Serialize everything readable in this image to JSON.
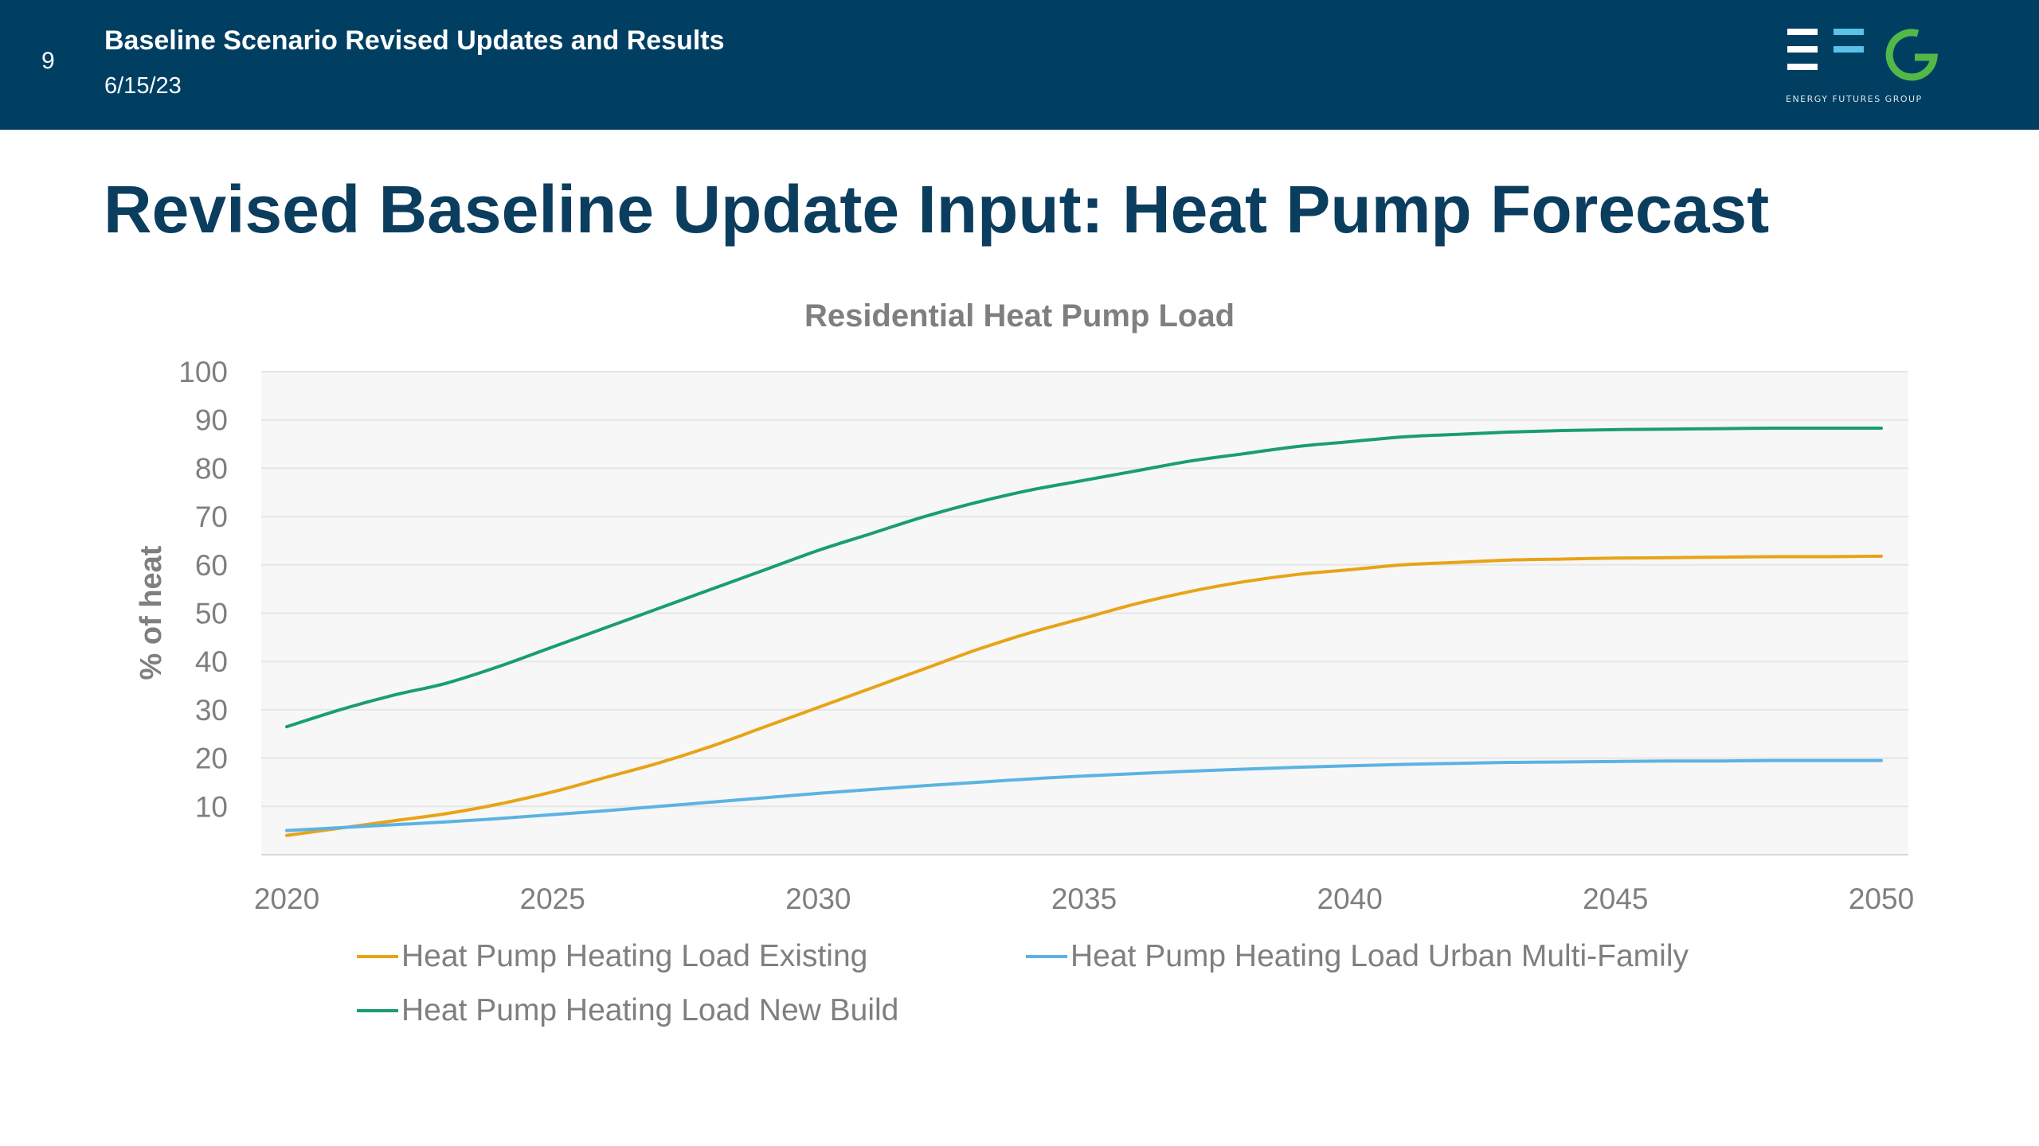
{
  "header": {
    "page_number": "9",
    "title": "Baseline Scenario Revised Updates and Results",
    "date": "6/15/23",
    "logo_text": "ENERGY FUTURES GROUP"
  },
  "slide": {
    "title": "Revised Baseline Update Input: Heat Pump Forecast"
  },
  "colors": {
    "header_bg": "#003f62",
    "title": "#0b3d5f",
    "logo_blue": "#5bc2e7",
    "logo_green": "#52b848"
  },
  "chart_data": {
    "type": "line",
    "title": "Residential Heat Pump Load",
    "xlabel": "",
    "ylabel": "% of heat",
    "xlim": [
      2020,
      2050
    ],
    "ylim": [
      0,
      100
    ],
    "x_ticks": [
      2020,
      2025,
      2030,
      2035,
      2040,
      2045,
      2050
    ],
    "y_ticks": [
      10,
      20,
      30,
      40,
      50,
      60,
      70,
      80,
      90,
      100
    ],
    "grid": true,
    "legend_position": "bottom",
    "x": [
      2020,
      2021,
      2022,
      2023,
      2024,
      2025,
      2026,
      2027,
      2028,
      2029,
      2030,
      2031,
      2032,
      2033,
      2034,
      2035,
      2036,
      2037,
      2038,
      2039,
      2040,
      2041,
      2042,
      2043,
      2044,
      2045,
      2046,
      2047,
      2048,
      2049,
      2050
    ],
    "series": [
      {
        "name": "Heat Pump Heating Load Existing",
        "color": "#e8a317",
        "values": [
          4,
          5.5,
          7,
          8.5,
          10.5,
          13,
          16,
          19,
          22.5,
          26.5,
          30.5,
          34.5,
          38.5,
          42.5,
          46,
          49,
          52,
          54.5,
          56.5,
          58,
          59,
          60,
          60.5,
          61,
          61.2,
          61.4,
          61.5,
          61.6,
          61.7,
          61.7,
          61.8
        ]
      },
      {
        "name": "Heat Pump Heating Load Urban Multi-Family",
        "color": "#5bb3e4",
        "values": [
          5,
          5.6,
          6.2,
          6.8,
          7.5,
          8.3,
          9.1,
          10,
          10.9,
          11.8,
          12.7,
          13.5,
          14.3,
          15,
          15.7,
          16.3,
          16.8,
          17.3,
          17.7,
          18.1,
          18.4,
          18.7,
          18.9,
          19.1,
          19.2,
          19.3,
          19.4,
          19.4,
          19.5,
          19.5,
          19.5
        ]
      },
      {
        "name": "Heat Pump Heating Load New Build",
        "color": "#1a9e6e",
        "values": [
          26.5,
          30,
          33,
          35.5,
          39,
          43,
          47,
          51,
          55,
          59,
          63,
          66.5,
          70,
          73,
          75.5,
          77.5,
          79.5,
          81.5,
          83,
          84.5,
          85.5,
          86.5,
          87,
          87.5,
          87.8,
          88,
          88.1,
          88.2,
          88.3,
          88.3,
          88.3
        ]
      }
    ]
  }
}
